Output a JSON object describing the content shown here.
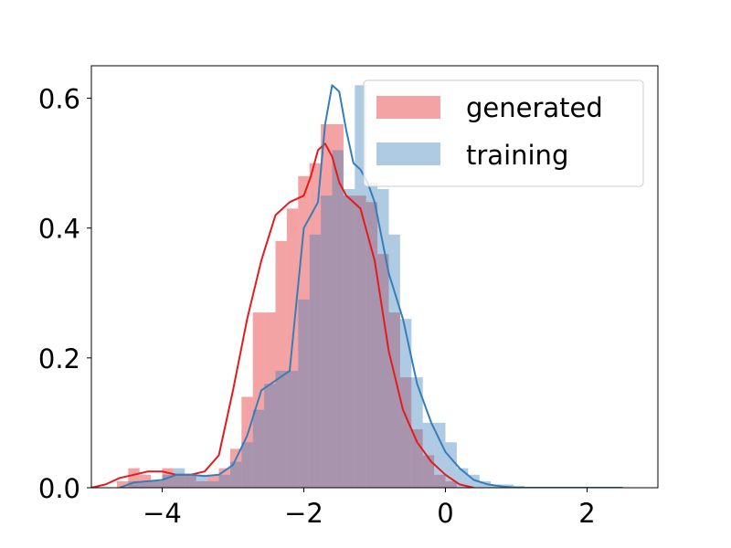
{
  "chart_data": {
    "type": "bar",
    "xlim": [
      -5,
      3
    ],
    "ylim": [
      0,
      0.65
    ],
    "x_ticks": [
      -4,
      -2,
      0,
      2
    ],
    "x_tick_labels": [
      "−4",
      "−2",
      "0",
      "2"
    ],
    "y_ticks": [
      0.0,
      0.2,
      0.4,
      0.6
    ],
    "y_tick_labels": [
      "0.0",
      "0.2",
      "0.4",
      "0.6"
    ],
    "legend_position": "upper-right",
    "bin_width": 0.16,
    "series": [
      {
        "name": "generated",
        "color": "#e41a1c",
        "hist_alpha": 0.4,
        "bins_start": [
          -4.64,
          -4.48,
          -4.32,
          -4.16,
          -4.0,
          -3.84,
          -3.68,
          -3.52,
          -3.36,
          -3.2,
          -3.04,
          -2.88,
          -2.72,
          -2.56,
          -2.4,
          -2.24,
          -2.08,
          -1.92,
          -1.76,
          -1.6,
          -1.44,
          -1.28,
          -1.12,
          -0.96,
          -0.8,
          -0.64,
          -0.48,
          -0.32,
          -0.16,
          0.0
        ],
        "hist": [
          0.01,
          0.03,
          0.02,
          0.01,
          0.03,
          0.02,
          0.02,
          0.01,
          0.02,
          0.03,
          0.06,
          0.14,
          0.27,
          0.27,
          0.38,
          0.43,
          0.48,
          0.5,
          0.56,
          0.56,
          0.45,
          0.45,
          0.44,
          0.36,
          0.27,
          0.17,
          0.09,
          0.05,
          0.02,
          0.01
        ],
        "kde_x": [
          -5.0,
          -4.8,
          -4.6,
          -4.4,
          -4.2,
          -4.0,
          -3.8,
          -3.6,
          -3.4,
          -3.2,
          -3.0,
          -2.8,
          -2.6,
          -2.4,
          -2.2,
          -2.0,
          -1.9,
          -1.8,
          -1.7,
          -1.6,
          -1.5,
          -1.4,
          -1.3,
          -1.2,
          -1.0,
          -0.8,
          -0.6,
          -0.4,
          -0.2,
          0.0,
          0.2,
          0.4
        ],
        "kde_y": [
          0.0,
          0.005,
          0.015,
          0.02,
          0.025,
          0.025,
          0.02,
          0.02,
          0.025,
          0.05,
          0.15,
          0.26,
          0.35,
          0.42,
          0.44,
          0.45,
          0.48,
          0.52,
          0.53,
          0.51,
          0.47,
          0.45,
          0.44,
          0.43,
          0.35,
          0.21,
          0.12,
          0.07,
          0.04,
          0.02,
          0.005,
          0.0
        ]
      },
      {
        "name": "training",
        "color": "#377eb8",
        "hist_alpha": 0.4,
        "bins_start": [
          -4.48,
          -4.32,
          -4.16,
          -4.0,
          -3.84,
          -3.68,
          -3.52,
          -3.36,
          -3.2,
          -3.04,
          -2.88,
          -2.72,
          -2.56,
          -2.4,
          -2.24,
          -2.08,
          -1.92,
          -1.76,
          -1.6,
          -1.44,
          -1.28,
          -1.12,
          -0.96,
          -0.8,
          -0.64,
          -0.48,
          -0.32,
          -0.16,
          0.0,
          0.16,
          0.32,
          0.48,
          0.64,
          0.8,
          0.96
        ],
        "hist": [
          0.01,
          0.01,
          0.01,
          0.02,
          0.03,
          0.02,
          0.02,
          0.01,
          0.02,
          0.04,
          0.07,
          0.12,
          0.16,
          0.18,
          0.18,
          0.29,
          0.39,
          0.45,
          0.52,
          0.46,
          0.62,
          0.47,
          0.46,
          0.39,
          0.26,
          0.17,
          0.1,
          0.1,
          0.07,
          0.03,
          0.02,
          0.01,
          0.005,
          0.005,
          0.003
        ],
        "kde_x": [
          -4.6,
          -4.4,
          -4.2,
          -4.0,
          -3.8,
          -3.6,
          -3.4,
          -3.2,
          -3.0,
          -2.8,
          -2.6,
          -2.4,
          -2.2,
          -2.0,
          -1.9,
          -1.8,
          -1.7,
          -1.6,
          -1.5,
          -1.4,
          -1.3,
          -1.2,
          -1.1,
          -1.0,
          -0.8,
          -0.6,
          -0.4,
          -0.2,
          0.0,
          0.2,
          0.4,
          0.6,
          0.8,
          1.0,
          1.4,
          2.5
        ],
        "kde_y": [
          0.0,
          0.008,
          0.01,
          0.012,
          0.02,
          0.02,
          0.018,
          0.02,
          0.035,
          0.08,
          0.15,
          0.165,
          0.18,
          0.4,
          0.42,
          0.44,
          0.56,
          0.62,
          0.61,
          0.55,
          0.5,
          0.49,
          0.47,
          0.44,
          0.33,
          0.26,
          0.16,
          0.1,
          0.055,
          0.03,
          0.012,
          0.005,
          0.002,
          0.0,
          0.0,
          0.0
        ]
      }
    ]
  }
}
